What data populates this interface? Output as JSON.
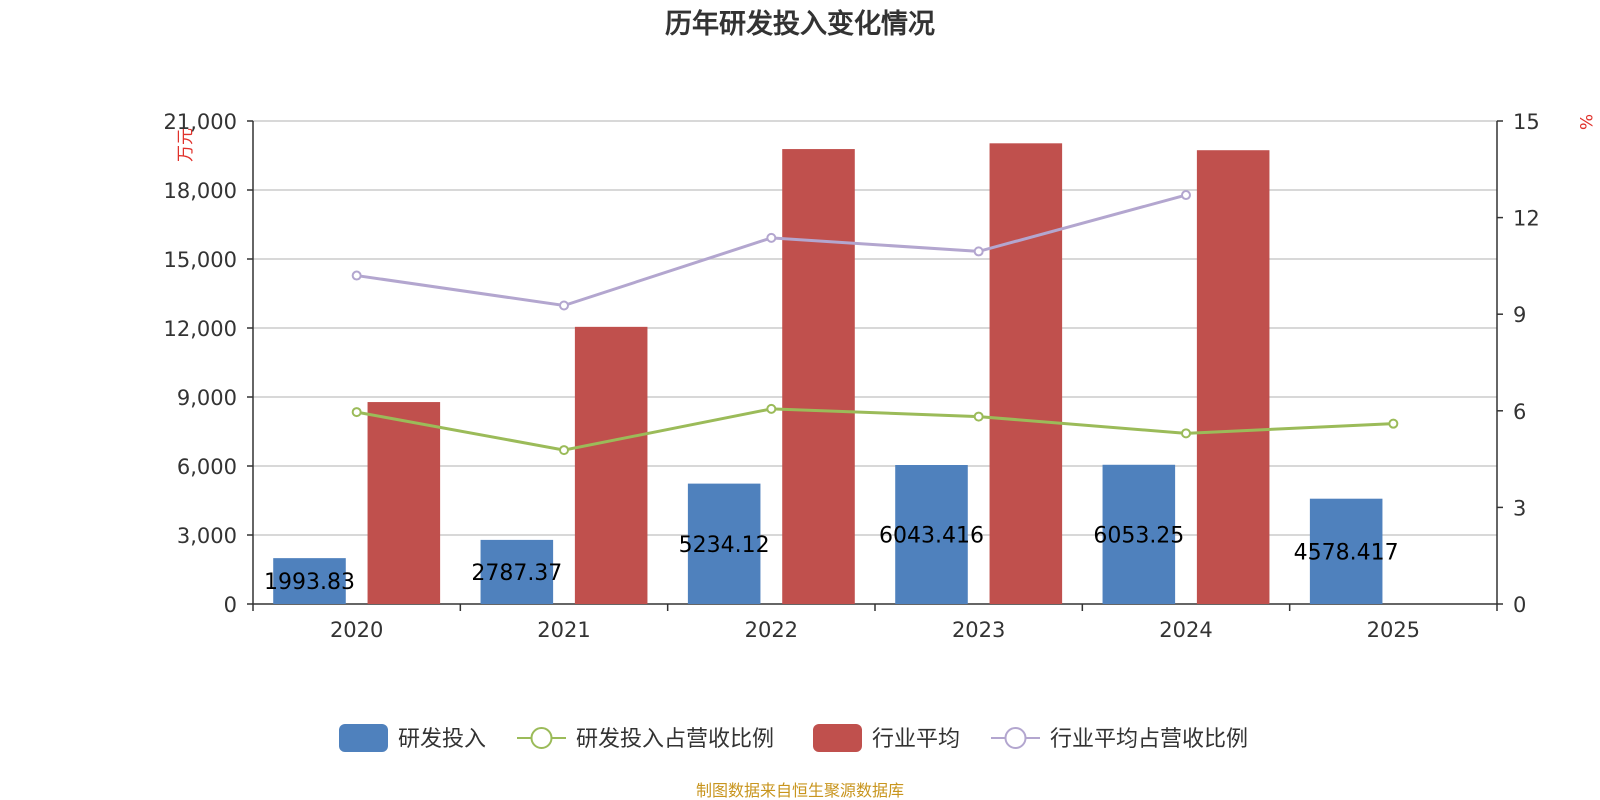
{
  "chart_data": {
    "type": "bar",
    "title": "历年研发投入变化情况",
    "categories": [
      "2020",
      "2021",
      "2022",
      "2023",
      "2024",
      "2025"
    ],
    "y_left": {
      "unit": "万元",
      "min": 0,
      "max": 21000,
      "ticks": [
        "0",
        "3,000",
        "6,000",
        "9,000",
        "12,000",
        "15,000",
        "18,000",
        "21,000"
      ]
    },
    "y_right": {
      "unit": "%",
      "min": 0,
      "max": 15,
      "ticks": [
        "0",
        "3",
        "6",
        "9",
        "12",
        "15"
      ]
    },
    "grid": true,
    "legend_position": "bottom",
    "series": [
      {
        "name": "研发投入",
        "type": "bar",
        "axis": "left",
        "color": "#4f81bd",
        "values": [
          1993.83,
          2787.37,
          5234.12,
          6043.416,
          6053.25,
          4578.417
        ],
        "labels": [
          "1993.83",
          "2787.37",
          "5234.12",
          "6043.416",
          "6053.25",
          "4578.417"
        ]
      },
      {
        "name": "研发投入占营收比例",
        "type": "line",
        "axis": "right",
        "color": "#9bbb59",
        "values": [
          5.96,
          4.78,
          6.06,
          5.82,
          5.3,
          5.6
        ]
      },
      {
        "name": "行业平均",
        "type": "bar",
        "axis": "left",
        "color": "#c0504d",
        "values": [
          8780,
          12050,
          19780,
          20030,
          19730,
          null
        ]
      },
      {
        "name": "行业平均占营收比例",
        "type": "line",
        "axis": "right",
        "color": "#b3a6cf",
        "values": [
          10.2,
          9.27,
          11.37,
          10.95,
          12.7,
          null
        ]
      }
    ],
    "source": "制图数据来自恒生聚源数据库"
  }
}
